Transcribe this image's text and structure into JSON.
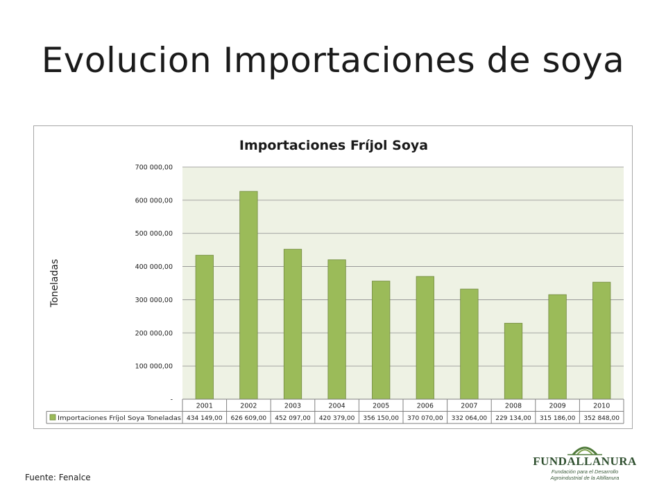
{
  "slide": {
    "title": "Evolucion Importaciones de soya",
    "source": "Fuente: Fenalce"
  },
  "logo": {
    "name": "FUNDALLANURA",
    "line1": "Fundación para el Desarrollo",
    "line2": "Agroindustrial de la Altillanura"
  },
  "colors": {
    "bar_fill": "#9bbb59",
    "bar_stroke": "#71893f",
    "plot_bg": "#eef2e4",
    "gridline": "#8c8c8c"
  },
  "chart_data": {
    "type": "bar",
    "title": "Importaciones Fríjol Soya",
    "ylabel": "Toneladas",
    "categories": [
      "2001",
      "2002",
      "2003",
      "2004",
      "2005",
      "2006",
      "2007",
      "2008",
      "2009",
      "2010"
    ],
    "series": [
      {
        "name": "Importaciones Fríjol Soya Toneladas",
        "values": [
          434149,
          626609,
          452097,
          420379,
          356150,
          370070,
          332064,
          229134,
          315186,
          352848
        ],
        "value_labels": [
          "434 149,00",
          "626 609,00",
          "452 097,00",
          "420 379,00",
          "356 150,00",
          "370 070,00",
          "332 064,00",
          "229 134,00",
          "315 186,00",
          "352 848,00"
        ]
      }
    ],
    "ylim": [
      0,
      700000
    ],
    "yticks": [
      0,
      100000,
      200000,
      300000,
      400000,
      500000,
      600000,
      700000
    ],
    "ytick_labels": [
      "-",
      "100 000,00",
      "200 000,00",
      "300 000,00",
      "400 000,00",
      "500 000,00",
      "600 000,00",
      "700 000,00"
    ],
    "grid": true,
    "legend": "data-table"
  }
}
